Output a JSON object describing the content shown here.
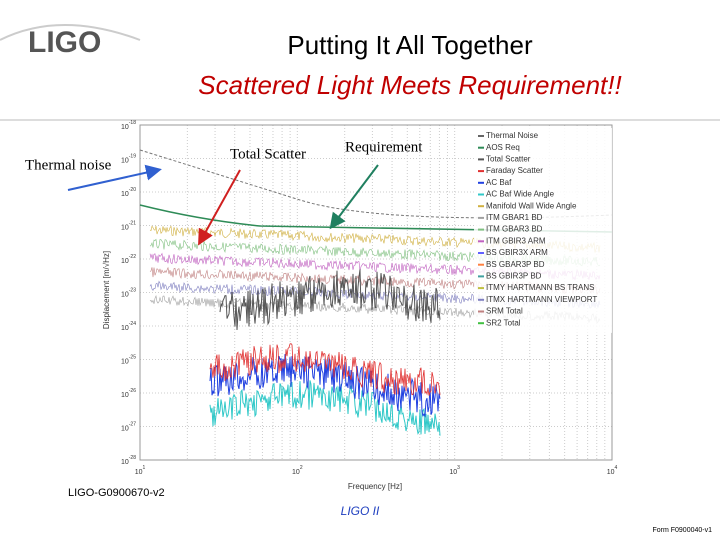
{
  "header": {
    "logo": "LIGO",
    "title": "Putting It All Together",
    "subtitle": "Scattered Light Meets Requirement!!"
  },
  "plot": {
    "x_label": "Frequency [Hz]",
    "y_label": "Displacement [m/√Hz]",
    "x_ticks": [
      {
        "mantissa": "10",
        "exponent": "1"
      },
      {
        "mantissa": "10",
        "exponent": "2"
      },
      {
        "mantissa": "10",
        "exponent": "3"
      },
      {
        "mantissa": "10",
        "exponent": "4"
      }
    ],
    "y_ticks": [
      {
        "mantissa": "10",
        "exponent": "-18"
      },
      {
        "mantissa": "10",
        "exponent": "-19"
      },
      {
        "mantissa": "10",
        "exponent": "-20"
      },
      {
        "mantissa": "10",
        "exponent": "-21"
      },
      {
        "mantissa": "10",
        "exponent": "-22"
      },
      {
        "mantissa": "10",
        "exponent": "-23"
      },
      {
        "mantissa": "10",
        "exponent": "-24"
      },
      {
        "mantissa": "10",
        "exponent": "-25"
      },
      {
        "mantissa": "10",
        "exponent": "-26"
      },
      {
        "mantissa": "10",
        "exponent": "-27"
      },
      {
        "mantissa": "10",
        "exponent": "-28"
      }
    ],
    "legend": [
      {
        "name": "Thermal Noise",
        "color": "#666666"
      },
      {
        "name": "AOS Req",
        "color": "#2e8b57"
      },
      {
        "name": "Total Scatter",
        "color": "#555555"
      },
      {
        "name": "Faraday Scatter",
        "color": "#e03030"
      },
      {
        "name": "AC Baf",
        "color": "#2040e0"
      },
      {
        "name": "AC Baf Wide Angle",
        "color": "#30c8c8"
      },
      {
        "name": "Manifold Wall Wide Angle",
        "color": "#d0b040"
      },
      {
        "name": "ITM GBAR1 BD",
        "color": "#a0a0a0"
      },
      {
        "name": "ITM GBAR3 BD",
        "color": "#80c080"
      },
      {
        "name": "ITM GBIR3 ARM",
        "color": "#c060c0"
      },
      {
        "name": "BS GBIR3X ARM",
        "color": "#6060ff"
      },
      {
        "name": "BS GBAR3P BD",
        "color": "#ff8040"
      },
      {
        "name": "BS GBIR3P BD",
        "color": "#40a0a0"
      },
      {
        "name": "ITMY HARTMANN BS TRANS",
        "color": "#c0c040"
      },
      {
        "name": "ITMX HARTMANN VIEWPORT",
        "color": "#8080c0"
      },
      {
        "name": "SRM Total",
        "color": "#c08080"
      },
      {
        "name": "SR2 Total",
        "color": "#40c040"
      }
    ]
  },
  "annotations": {
    "thermal": "Thermal noise",
    "total_scatter": "Total Scatter",
    "requirement": "Requirement"
  },
  "footer": {
    "doc_id": "LIGO-G0900670-v2",
    "center": "LIGO II",
    "form": "Form F0900040-v1"
  }
}
